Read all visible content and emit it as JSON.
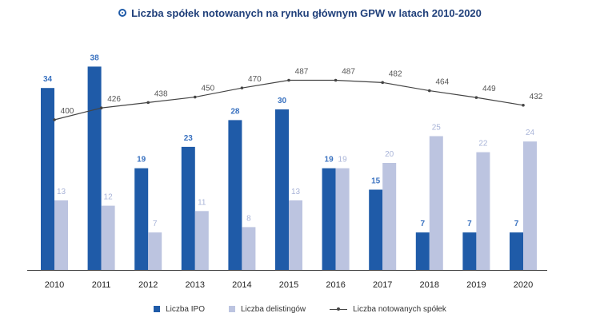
{
  "chart_data": {
    "type": "bar+line",
    "title": "Liczba spółek notowanych na rynku głównym GPW w latach 2010-2020",
    "categories": [
      "2010",
      "2011",
      "2012",
      "2013",
      "2014",
      "2015",
      "2016",
      "2017",
      "2018",
      "2019",
      "2020"
    ],
    "series": [
      {
        "name": "Liczba IPO",
        "type": "bar",
        "color": "#1f5ba8",
        "values": [
          34,
          38,
          19,
          23,
          28,
          30,
          19,
          15,
          7,
          7,
          7
        ]
      },
      {
        "name": "Liczba delistingów",
        "type": "bar",
        "color": "#bcc4e0",
        "values": [
          13,
          12,
          7,
          11,
          8,
          13,
          19,
          20,
          25,
          22,
          24
        ]
      },
      {
        "name": "Liczba notowanych spółek",
        "type": "line",
        "color": "#444444",
        "values": [
          400,
          426,
          438,
          450,
          470,
          487,
          487,
          482,
          464,
          449,
          432
        ]
      }
    ],
    "label_colors": {
      "ipo": "#3a72c0",
      "delist": "#a9b4d8",
      "line": "#555555"
    }
  }
}
